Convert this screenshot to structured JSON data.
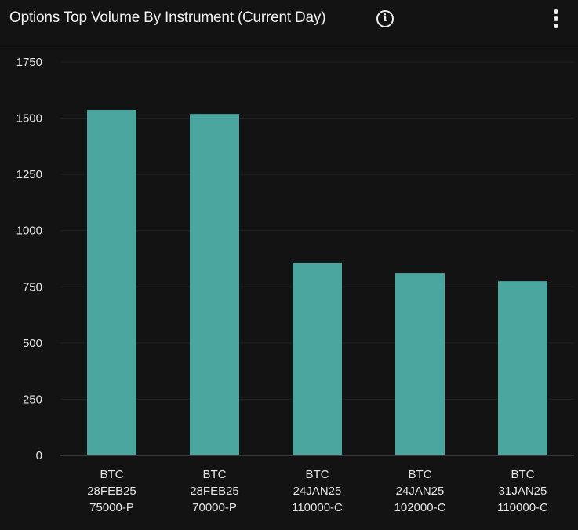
{
  "header": {
    "title": "Options Top Volume By Instrument (Current Day)",
    "info_icon": "info-icon",
    "menu_icon": "more-vertical-icon"
  },
  "chart_data": {
    "type": "bar",
    "title": "Options Top Volume By Instrument (Current Day)",
    "categories": [
      [
        "BTC",
        "28FEB25",
        "75000-P"
      ],
      [
        "BTC",
        "28FEB25",
        "70000-P"
      ],
      [
        "BTC",
        "24JAN25",
        "110000-C"
      ],
      [
        "BTC",
        "24JAN25",
        "102000-C"
      ],
      [
        "BTC",
        "31JAN25",
        "110000-C"
      ]
    ],
    "values": [
      1537,
      1519,
      856,
      810,
      775
    ],
    "ylim": [
      0,
      1750
    ],
    "yticks": [
      0,
      250,
      500,
      750,
      1000,
      1250,
      1500,
      1750
    ],
    "xlabel": "",
    "ylabel": "",
    "grid": true,
    "bar_color": "#4aa69f"
  }
}
